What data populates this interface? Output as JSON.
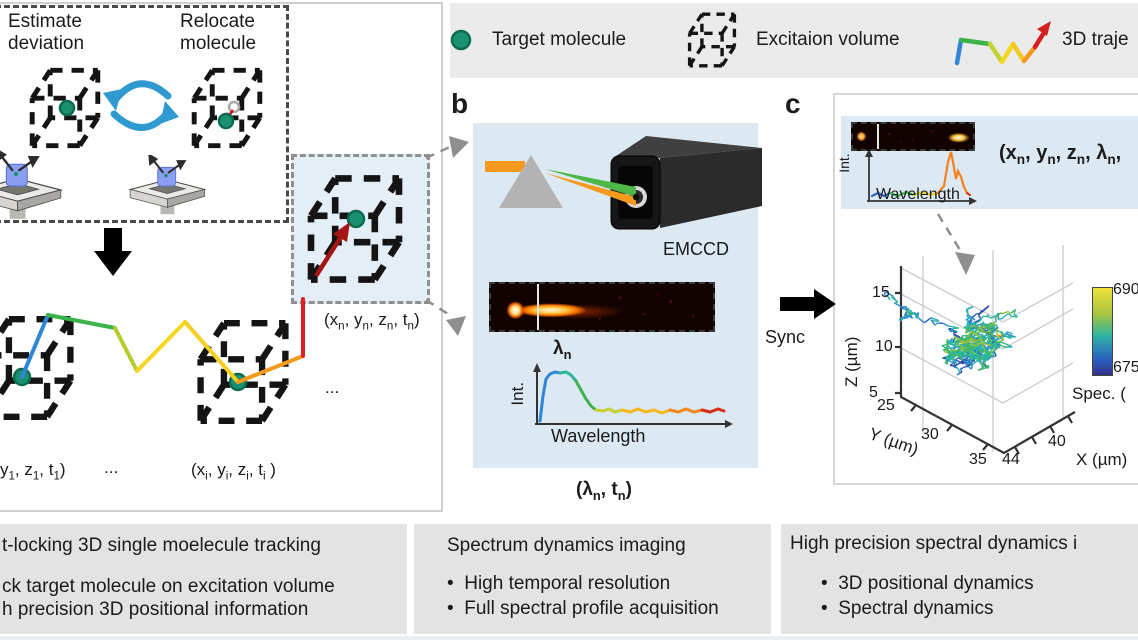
{
  "panel_a": {
    "step1": "Estimate deviation",
    "step2": "Relocate molecule",
    "coord_first": "y<sub>1</sub>, z<sub>1</sub>, t<sub>1</sub>)",
    "dots_bottom": "...",
    "dots_right": "...",
    "coord_i": "(x<sub>i</sub>, y<sub>i</sub>, z<sub>i</sub>, t<sub>i</sub> )",
    "coord_n": "(x<sub>n</sub>, y<sub>n</sub>, z<sub>n</sub>, t<sub>n</sub>)"
  },
  "legend": {
    "item1": "Target molecule",
    "item2": "Excitaion volume",
    "item3": "3D traje"
  },
  "panel_b": {
    "label": "b",
    "camera_label": "EMCCD",
    "peak_label": "λ<sub>n</sub>",
    "y_axis": "Int.",
    "x_axis": "Wavelength",
    "output_label": "(λ<sub>n</sub>, t<sub>n</sub>)"
  },
  "sync": {
    "label": "Sync"
  },
  "panel_c": {
    "label": "c",
    "y_axis": "Int.",
    "x_axis": "Wavelength",
    "coords_label": "(x<sub>n</sub>, y<sub>n</sub>, z<sub>n</sub>, λ<sub>n</sub>,"
  },
  "chart_data": {
    "type": "scatter",
    "title": "3D single-molecule trajectory colored by spectral position",
    "xlabel": "X (µm)",
    "ylabel": "Y (µm)",
    "zlabel": "Z (µm)",
    "x_ticks": [
      "44",
      "40"
    ],
    "y_ticks": [
      "25",
      "30",
      "35"
    ],
    "z_ticks": [
      "5",
      "10",
      "15"
    ],
    "x_range": [
      44,
      38
    ],
    "y_range": [
      25,
      35
    ],
    "z_range": [
      5,
      15
    ],
    "colorbar": {
      "top": "690",
      "bottom": "675",
      "label": "Spec. ("
    },
    "colors": {
      "accent_green": "#1a9170",
      "panel_blue": "#dce9f3",
      "legend_gray": "#ebebeb",
      "box_gray": "#e3e3e3"
    }
  },
  "boxes": {
    "box1": {
      "line1": "t-locking 3D single moelecule tracking",
      "line2": "ck target molecule on excitation volume",
      "line3": "h precision 3D positional information"
    },
    "box2": {
      "title": "Spectrum dynamics imaging",
      "bullet1": "High temporal resolution",
      "bullet2": "Full spectral profile acquisition"
    },
    "box3": {
      "title": "High precision spectral dynamics i",
      "bullet1": "3D positional dynamics",
      "bullet2": "Spectral dynamics"
    }
  }
}
